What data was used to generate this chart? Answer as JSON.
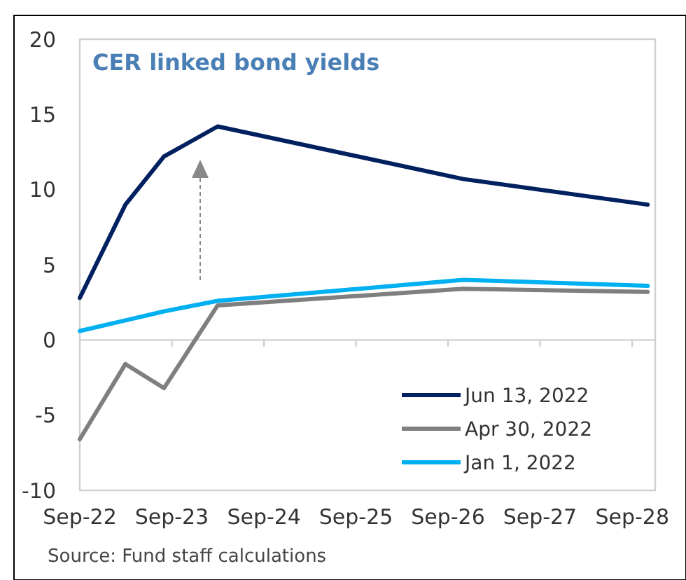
{
  "chart_data": {
    "type": "line",
    "title": "CER linked bond yields",
    "annotations": [
      "Source: Fund staff calculations"
    ],
    "xlim": [
      "2022-09",
      "2028-12"
    ],
    "xticks": [
      {
        "value": "2022-09",
        "label": "Sep-22"
      },
      {
        "value": "2023-09",
        "label": "Sep-23"
      },
      {
        "value": "2024-09",
        "label": "Sep-24"
      },
      {
        "value": "2025-09",
        "label": "Sep-25"
      },
      {
        "value": "2026-09",
        "label": "Sep-26"
      },
      {
        "value": "2027-09",
        "label": "Sep-27"
      },
      {
        "value": "2028-09",
        "label": "Sep-28"
      }
    ],
    "ylim": [
      -10,
      20
    ],
    "yticks": [
      -10,
      -5,
      0,
      5,
      10,
      15,
      20
    ],
    "x": [
      "2022-09",
      "2023-03",
      "2023-08",
      "2024-03",
      "2026-11",
      "2028-11"
    ],
    "series": [
      {
        "name": "Jun 13, 2022",
        "color": "#002060",
        "values": [
          2.8,
          9.0,
          12.2,
          14.2,
          10.7,
          9.0
        ]
      },
      {
        "name": "Apr 30, 2022",
        "color": "#7f7f7f",
        "values": [
          -6.6,
          -1.6,
          -3.2,
          2.3,
          3.4,
          3.2
        ]
      },
      {
        "name": "Jan 1, 2022",
        "color": "#00b0f0",
        "values": [
          0.6,
          1.3,
          1.9,
          2.6,
          4.0,
          3.6
        ]
      }
    ],
    "legend": "bottom right",
    "marker": "none",
    "line_style": "solid"
  }
}
